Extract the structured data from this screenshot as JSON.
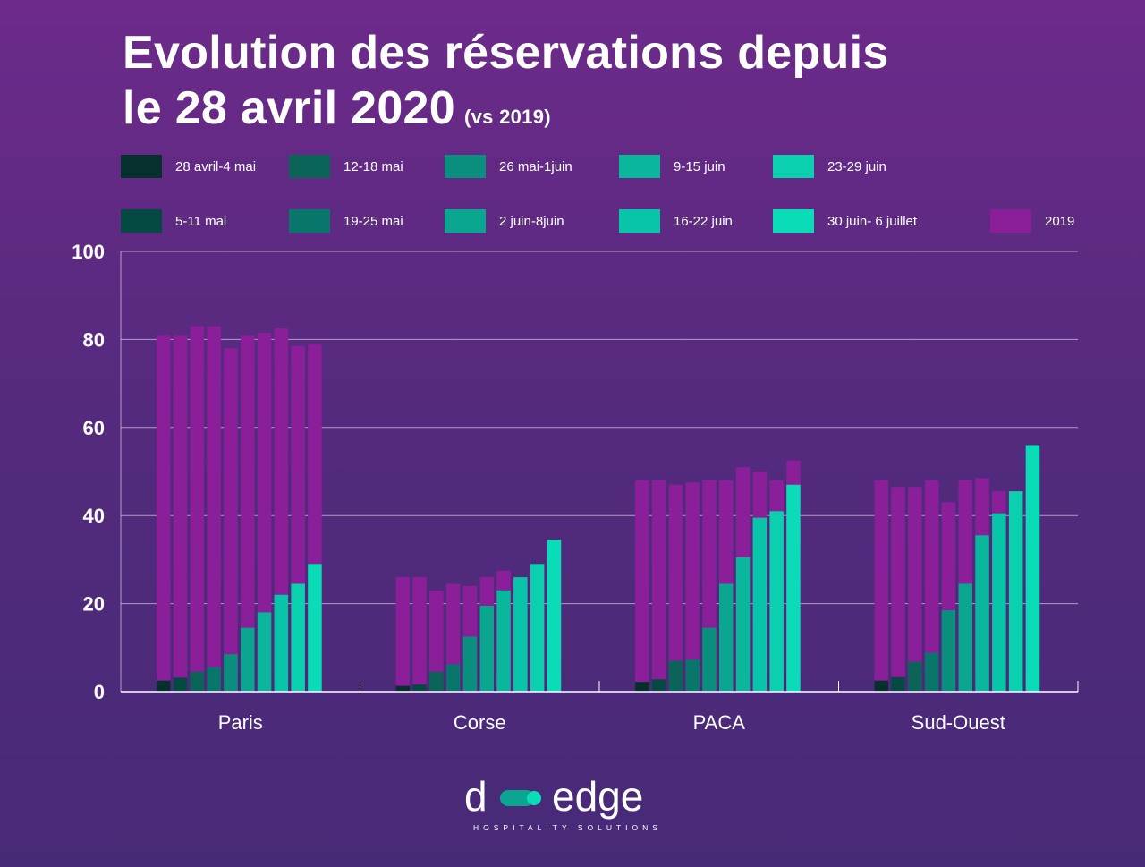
{
  "title": {
    "line1": "Evolution des réservations depuis",
    "line2": "le 28 avril 2020",
    "suffix": "(vs 2019)"
  },
  "logo": {
    "word": "d",
    "word2": "edge",
    "tagline": "HOSPITALITY SOLUTIONS"
  },
  "colors": {
    "series": [
      "#05302c",
      "#054a42",
      "#0a6457",
      "#08766a",
      "#0a8f7e",
      "#0aa690",
      "#0ab69c",
      "#08c4a8",
      "#0bd0b0",
      "#0bdcb8"
    ],
    "baseline_2019": "#8b1f9a"
  },
  "chart_data": {
    "type": "bar",
    "ylim": [
      0,
      100
    ],
    "yticks": [
      "0",
      "20",
      "40",
      "60",
      "80",
      "100"
    ],
    "grid": true,
    "legend_position": "top",
    "categories": [
      "Paris",
      "Corse",
      "PACA",
      "Sud-Ouest"
    ],
    "series": [
      {
        "name": "28 avril-4 mai",
        "values": [
          2.5,
          1.3,
          2.2,
          2.5
        ],
        "values_2019": [
          81,
          26,
          48,
          48
        ]
      },
      {
        "name": "5-11 mai",
        "values": [
          3.2,
          1.6,
          2.8,
          3.3
        ],
        "values_2019": [
          81,
          26,
          48,
          46.5
        ]
      },
      {
        "name": "12-18 mai",
        "values": [
          4.5,
          4.5,
          7.0,
          6.8
        ],
        "values_2019": [
          83,
          23,
          47,
          46.5
        ]
      },
      {
        "name": "19-25 mai",
        "values": [
          5.5,
          6.2,
          7.3,
          8.8
        ],
        "values_2019": [
          83,
          24.5,
          47.5,
          48
        ]
      },
      {
        "name": "26 mai-1juin",
        "values": [
          8.5,
          12.5,
          14.5,
          18.5
        ],
        "values_2019": [
          78,
          24,
          48,
          43
        ]
      },
      {
        "name": "2 juin-8juin",
        "values": [
          14.5,
          19.5,
          24.5,
          24.5
        ],
        "values_2019": [
          81,
          26,
          48,
          48
        ]
      },
      {
        "name": "9-15 juin",
        "values": [
          18,
          23,
          30.5,
          35.5
        ],
        "values_2019": [
          81.5,
          27.5,
          51,
          48.5
        ]
      },
      {
        "name": "16-22 juin",
        "values": [
          22,
          26,
          39.5,
          40.5
        ],
        "values_2019": [
          82.5,
          26,
          50,
          45.5
        ]
      },
      {
        "name": "23-29 juin",
        "values": [
          24.5,
          29,
          41,
          45.5
        ],
        "values_2019": [
          78.5,
          29,
          48,
          45.5
        ]
      },
      {
        "name": "30 juin- 6 juillet",
        "values": [
          29,
          34.5,
          47,
          56
        ],
        "values_2019": [
          79,
          34.5,
          52.5,
          56
        ]
      }
    ],
    "baseline_label": "2019"
  }
}
